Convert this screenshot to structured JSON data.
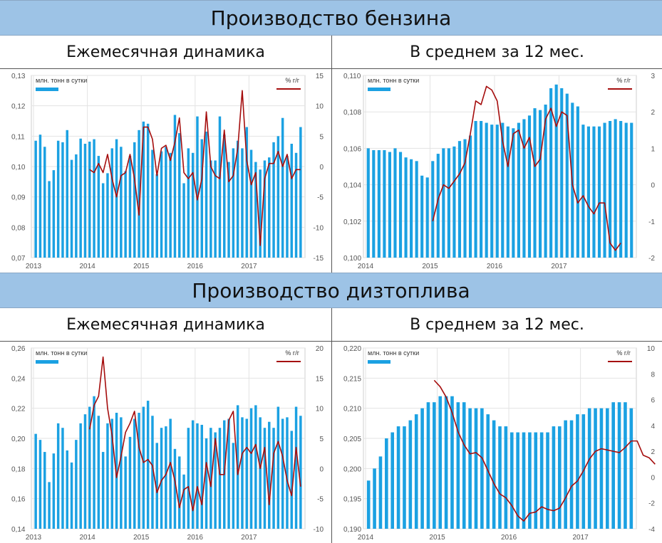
{
  "sections": [
    {
      "title": "Производство бензина",
      "left_label": "Ежемесячная динамика",
      "right_label": "В среднем за 12 мес."
    },
    {
      "title": "Производство дизтоплива",
      "left_label": "Ежемесячная динамика",
      "right_label": "В среднем за 12 мес."
    }
  ],
  "colors": {
    "bars": "#1ba1e2",
    "line": "#a50d0d",
    "header_bg": "#9dc3e6",
    "grid": "#e3e3e3"
  },
  "chart_data": [
    {
      "id": "gas-monthly",
      "type": "bar",
      "legend_bar": "млн. тонн в сутки",
      "legend_line": "% г/г",
      "legend_position": "top",
      "grid": true,
      "x_ticks": [
        "2013",
        "2014",
        "2015",
        "2016",
        "2017"
      ],
      "x_tick_index": [
        0,
        12,
        24,
        36,
        48
      ],
      "ylim": [
        0.07,
        0.13
      ],
      "y_ticks": [
        "0,13",
        "0,12",
        "0,11",
        "0,10",
        "0,09",
        "0,08",
        "0,07"
      ],
      "y2lim": [
        -15,
        15
      ],
      "y2_ticks": [
        "15",
        "10",
        "5",
        "0",
        "-5",
        "-10",
        "-15"
      ],
      "series": [
        {
          "name": "млн. тонн в сутки",
          "kind": "bar",
          "start_index": 0,
          "values": [
            0.1085,
            0.1105,
            0.1065,
            0.0952,
            0.0988,
            0.1085,
            0.108,
            0.112,
            0.1022,
            0.104,
            0.1092,
            0.1075,
            0.1082,
            0.109,
            0.1035,
            0.0945,
            0.0978,
            0.106,
            0.109,
            0.1065,
            0.0985,
            0.1035,
            0.108,
            0.112,
            0.1148,
            0.1141,
            0.1055,
            0.0975,
            0.105,
            0.1065,
            0.1045,
            0.117,
            0.111,
            0.0945,
            0.106,
            0.1045,
            0.1165,
            0.109,
            0.1115,
            0.102,
            0.102,
            0.1165,
            0.1105,
            0.1015,
            0.106,
            0.1085,
            0.106,
            0.113,
            0.1055,
            0.1015,
            0.099,
            0.102,
            0.103,
            0.108,
            0.11,
            0.116,
            0.1035,
            0.1075,
            0.1045,
            0.113
          ]
        },
        {
          "name": "% г/г",
          "kind": "line",
          "start_index": 12,
          "values": [
            -0.5,
            -1.0,
            0.5,
            -1.0,
            2.0,
            -2.0,
            -5.0,
            -1.5,
            -1.0,
            2.0,
            -2.0,
            -8.0,
            6.5,
            6.5,
            4.5,
            -1.5,
            3.0,
            3.5,
            1.0,
            4.0,
            8.0,
            -1.0,
            -2.0,
            -1.0,
            -5.5,
            -2.0,
            9.0,
            0.0,
            -1.5,
            -2.0,
            6.0,
            -2.5,
            -1.5,
            3.0,
            12.5,
            1.0,
            -3.0,
            -1.0,
            -13.0,
            -2.0,
            0.5,
            0.5,
            2.5,
            0.0,
            2.0,
            -2.0,
            -0.5,
            -0.5
          ]
        }
      ]
    },
    {
      "id": "gas-avg",
      "type": "bar",
      "legend_bar": "млн. тонн в сутки",
      "legend_line": "% г/г",
      "legend_position": "top",
      "grid": true,
      "x_ticks": [
        "2014",
        "2015",
        "2016",
        "2017"
      ],
      "x_tick_index": [
        0,
        12,
        24,
        36
      ],
      "ylim": [
        0.1,
        0.11
      ],
      "y_ticks": [
        "0,110",
        "0,108",
        "0,106",
        "0,104",
        "0,102",
        "0,100"
      ],
      "y2lim": [
        -2,
        3
      ],
      "y2_ticks": [
        "3",
        "2",
        "1",
        "0",
        "-1",
        "-2"
      ],
      "series": [
        {
          "name": "млн. тонн в сутки",
          "kind": "bar",
          "start_index": 0,
          "values": [
            0.106,
            0.1059,
            0.1059,
            0.1059,
            0.1058,
            0.106,
            0.1058,
            0.1055,
            0.1054,
            0.1053,
            0.1045,
            0.1044,
            0.1053,
            0.1057,
            0.106,
            0.106,
            0.1061,
            0.1064,
            0.1065,
            0.1067,
            0.1075,
            0.1075,
            0.1074,
            0.1073,
            0.1073,
            0.1074,
            0.1072,
            0.1071,
            0.1074,
            0.1076,
            0.1078,
            0.1082,
            0.1081,
            0.1084,
            0.1093,
            0.1095,
            0.1093,
            0.109,
            0.1085,
            0.1083,
            0.1073,
            0.1072,
            0.1072,
            0.1072,
            0.1074,
            0.1075,
            0.1076,
            0.1075,
            0.1074,
            0.1074
          ]
        },
        {
          "name": "% г/г",
          "kind": "line",
          "start_index": 12,
          "values": [
            -1.0,
            -0.4,
            0.0,
            -0.1,
            0.1,
            0.3,
            0.6,
            1.4,
            2.3,
            2.2,
            2.7,
            2.6,
            2.3,
            1.2,
            0.5,
            1.4,
            1.5,
            1.0,
            1.3,
            0.5,
            0.7,
            1.8,
            2.1,
            1.6,
            2.0,
            1.9,
            0.0,
            -0.5,
            -0.3,
            -0.6,
            -0.8,
            -0.5,
            -0.5,
            -1.6,
            -1.8,
            -1.6
          ]
        }
      ]
    },
    {
      "id": "diesel-monthly",
      "type": "bar",
      "legend_bar": "млн. тонн в сутки",
      "legend_line": "% г/г",
      "legend_position": "top",
      "grid": true,
      "x_ticks": [
        "2013",
        "2014",
        "2015",
        "2016",
        "2017"
      ],
      "x_tick_index": [
        0,
        12,
        24,
        36,
        48
      ],
      "ylim": [
        0.14,
        0.26
      ],
      "y_ticks": [
        "0,26",
        "0,24",
        "0,22",
        "0,20",
        "0,18",
        "0,16",
        "0,14"
      ],
      "y2lim": [
        -10,
        20
      ],
      "y2_ticks": [
        "20",
        "15",
        "10",
        "5",
        "0",
        "-5",
        "-10"
      ],
      "series": [
        {
          "name": "млн. тонн в сутки",
          "kind": "bar",
          "start_index": 0,
          "values": [
            0.203,
            0.199,
            0.191,
            0.171,
            0.19,
            0.21,
            0.207,
            0.192,
            0.184,
            0.199,
            0.21,
            0.216,
            0.221,
            0.228,
            0.215,
            0.191,
            0.21,
            0.213,
            0.217,
            0.214,
            0.188,
            0.201,
            0.213,
            0.217,
            0.221,
            0.225,
            0.215,
            0.197,
            0.207,
            0.208,
            0.213,
            0.193,
            0.188,
            0.176,
            0.207,
            0.212,
            0.21,
            0.209,
            0.2,
            0.207,
            0.204,
            0.207,
            0.212,
            0.213,
            0.197,
            0.222,
            0.214,
            0.213,
            0.22,
            0.222,
            0.214,
            0.207,
            0.211,
            0.207,
            0.221,
            0.213,
            0.214,
            0.205,
            0.221,
            0.215
          ]
        },
        {
          "name": "% г/г",
          "kind": "line",
          "start_index": 12,
          "values": [
            6.5,
            10.5,
            12.0,
            18.5,
            10.0,
            5.5,
            -1.5,
            2.0,
            6.0,
            7.5,
            9.5,
            3.5,
            1.0,
            1.5,
            0.5,
            -4.0,
            -2.0,
            -1.0,
            1.0,
            -2.0,
            -6.5,
            -3.5,
            -3.0,
            -7.0,
            -3.0,
            -6.0,
            1.0,
            -3.0,
            5.0,
            -1.0,
            -1.0,
            8.0,
            9.5,
            -1.0,
            2.5,
            3.5,
            2.5,
            4.0,
            0.0,
            3.5,
            -6.0,
            2.5,
            4.5,
            2.0,
            -2.0,
            -4.5,
            3.5,
            -3.0
          ]
        }
      ]
    },
    {
      "id": "diesel-avg",
      "type": "bar",
      "legend_bar": "млн. тонн в сутки",
      "legend_line": "% г/г",
      "legend_position": "top",
      "grid": true,
      "x_ticks": [
        "2014",
        "2015",
        "2016",
        "2017"
      ],
      "x_tick_index": [
        0,
        12,
        24,
        36
      ],
      "ylim": [
        0.19,
        0.22
      ],
      "y_ticks": [
        "0,220",
        "0,215",
        "0,210",
        "0,205",
        "0,200",
        "0,195",
        "0,190"
      ],
      "y2lim": [
        -4,
        10
      ],
      "y2_ticks": [
        "10",
        "8",
        "6",
        "4",
        "2",
        "0",
        "-2",
        "-4"
      ],
      "series": [
        {
          "name": "млн. тонн в сутки",
          "kind": "bar",
          "start_index": 0,
          "values": [
            0.198,
            0.2,
            0.202,
            0.205,
            0.206,
            0.207,
            0.207,
            0.208,
            0.209,
            0.21,
            0.211,
            0.211,
            0.212,
            0.212,
            0.212,
            0.211,
            0.211,
            0.21,
            0.21,
            0.21,
            0.209,
            0.208,
            0.207,
            0.207,
            0.206,
            0.206,
            0.206,
            0.206,
            0.206,
            0.206,
            0.206,
            0.207,
            0.207,
            0.208,
            0.208,
            0.209,
            0.209,
            0.21,
            0.21,
            0.21,
            0.21,
            0.211,
            0.211,
            0.211,
            0.21
          ]
        },
        {
          "name": "% г/г",
          "kind": "line",
          "start_index": 11,
          "values": [
            7.5,
            7.0,
            6.2,
            5.0,
            3.5,
            2.5,
            1.8,
            1.9,
            1.5,
            0.5,
            -0.5,
            -1.3,
            -1.6,
            -2.2,
            -3.0,
            -3.4,
            -2.8,
            -2.7,
            -2.3,
            -2.5,
            -2.6,
            -2.4,
            -1.6,
            -0.7,
            -0.3,
            0.5,
            1.4,
            2.0,
            2.2,
            2.1,
            2.0,
            1.9,
            2.3,
            2.8,
            2.8,
            1.7,
            1.5,
            1.0
          ]
        }
      ]
    }
  ]
}
